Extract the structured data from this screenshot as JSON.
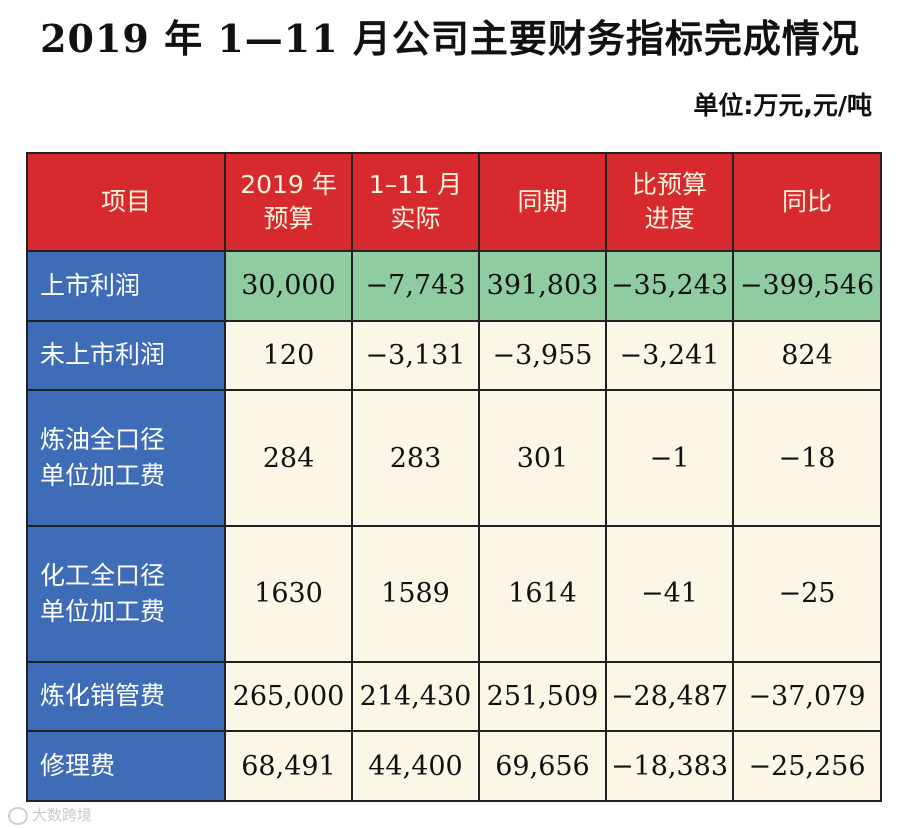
{
  "title": "2019 年 1—11 月公司主要财务指标完成情况",
  "unit": "单位:万元,元/吨",
  "table": {
    "headers": [
      [
        "项目"
      ],
      [
        "2019 年",
        "预算"
      ],
      [
        "1–11 月",
        "实际"
      ],
      [
        "同期"
      ],
      [
        "比预算",
        "进度"
      ],
      [
        "同比"
      ]
    ],
    "rows": [
      {
        "label": [
          "上市利润"
        ],
        "values": [
          "30,000",
          "−7,743",
          "391,803",
          "−35,243",
          "−399,546"
        ],
        "highlight": true
      },
      {
        "label": [
          "未上市利润"
        ],
        "values": [
          "120",
          "−3,131",
          "−3,955",
          "−3,241",
          "824"
        ]
      },
      {
        "label": [
          "炼油全口径",
          "单位加工费"
        ],
        "values": [
          "284",
          "283",
          "301",
          "−1",
          "−18"
        ]
      },
      {
        "label": [
          "化工全口径",
          "单位加工费"
        ],
        "values": [
          "1630",
          "1589",
          "1614",
          "−41",
          "−25"
        ]
      },
      {
        "label": [
          "炼化销管费"
        ],
        "values": [
          "265,000",
          "214,430",
          "251,509",
          "−28,487",
          "−37,079"
        ]
      },
      {
        "label": [
          "修理费"
        ],
        "values": [
          "68,491",
          "44,400",
          "69,656",
          "−18,383",
          "−25,256"
        ]
      }
    ]
  },
  "watermark": "大数跨境",
  "colors": {
    "header_bg": "#d72a2f",
    "label_bg": "#3e6cb6",
    "highlight_bg": "#8fcca2",
    "cell_bg": "#fbf6e6"
  }
}
